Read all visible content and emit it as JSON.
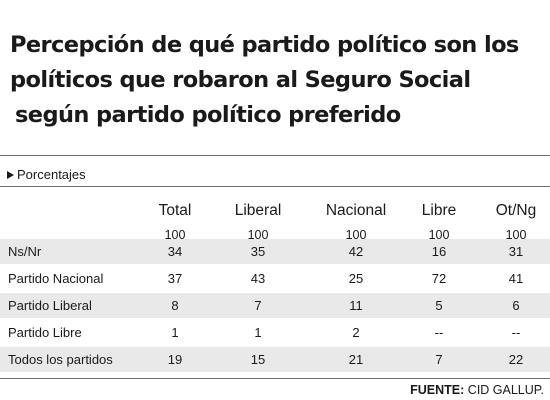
{
  "chart_data": {
    "type": "table",
    "title_lines": [
      "Percepción de qué partido político son los",
      "políticos que robaron al Seguro Social",
      "según partido político preferido"
    ],
    "subtitle": "Porcentajes",
    "columns": [
      "Total",
      "Liberal",
      "Nacional",
      "Libre",
      "Ot/Ng"
    ],
    "base": [
      "100",
      "100",
      "100",
      "100",
      "100"
    ],
    "rows": [
      {
        "label": "Ns/Nr",
        "values": [
          "34",
          "35",
          "42",
          "16",
          "31"
        ]
      },
      {
        "label": "Partido Nacional",
        "values": [
          "37",
          "43",
          "25",
          "72",
          "41"
        ]
      },
      {
        "label": "Partido Liberal",
        "values": [
          "8",
          "7",
          "11",
          "5",
          "6"
        ]
      },
      {
        "label": "Partido Libre",
        "values": [
          "1",
          "1",
          "2",
          "--",
          "--"
        ]
      },
      {
        "label": "Todos los partidos",
        "values": [
          "19",
          "15",
          "21",
          "7",
          "22"
        ]
      }
    ],
    "source_label": "FUENTE:",
    "source_value": "CID GALLUP."
  }
}
